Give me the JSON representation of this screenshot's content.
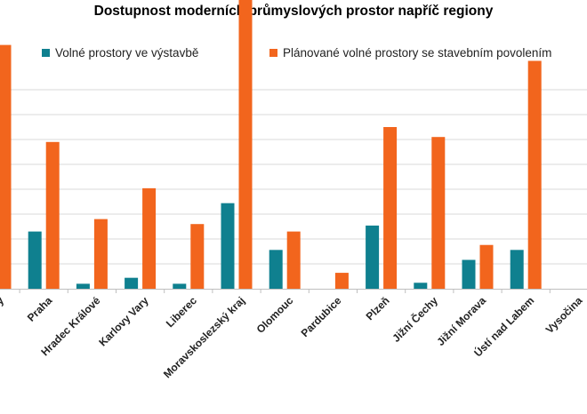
{
  "chart_data": {
    "type": "bar",
    "title": "Dostupnost moderních průmyslových prostor napříč regiony",
    "categories": [
      "Střední Čechy",
      "Praha",
      "Hradec Králové",
      "Karlovy Vary",
      "Liberec",
      "Moravskoslezský kraj",
      "Olomouc",
      "Pardubice",
      "Plzeň",
      "Jižní Čechy",
      "Jižní Morava",
      "Ústí nad Labem",
      "Vysočina"
    ],
    "series": [
      {
        "name": "Volné prostory ve výstavbě",
        "color": "#0f808f",
        "values": [
          0.4,
          1.15,
          0.1,
          0.22,
          0.1,
          1.72,
          0.78,
          0,
          1.27,
          0.12,
          0.58,
          0.78,
          0
        ]
      },
      {
        "name": "Plánované volné prostory se stavebním povolením",
        "color": "#f2651d",
        "values": [
          4.9,
          2.95,
          1.4,
          2.02,
          1.3,
          7.15,
          1.15,
          0.32,
          3.25,
          3.05,
          0.88,
          4.58,
          0
        ]
      }
    ],
    "ylim": [
      0,
      8
    ],
    "grid": true,
    "legend_position": "top"
  }
}
